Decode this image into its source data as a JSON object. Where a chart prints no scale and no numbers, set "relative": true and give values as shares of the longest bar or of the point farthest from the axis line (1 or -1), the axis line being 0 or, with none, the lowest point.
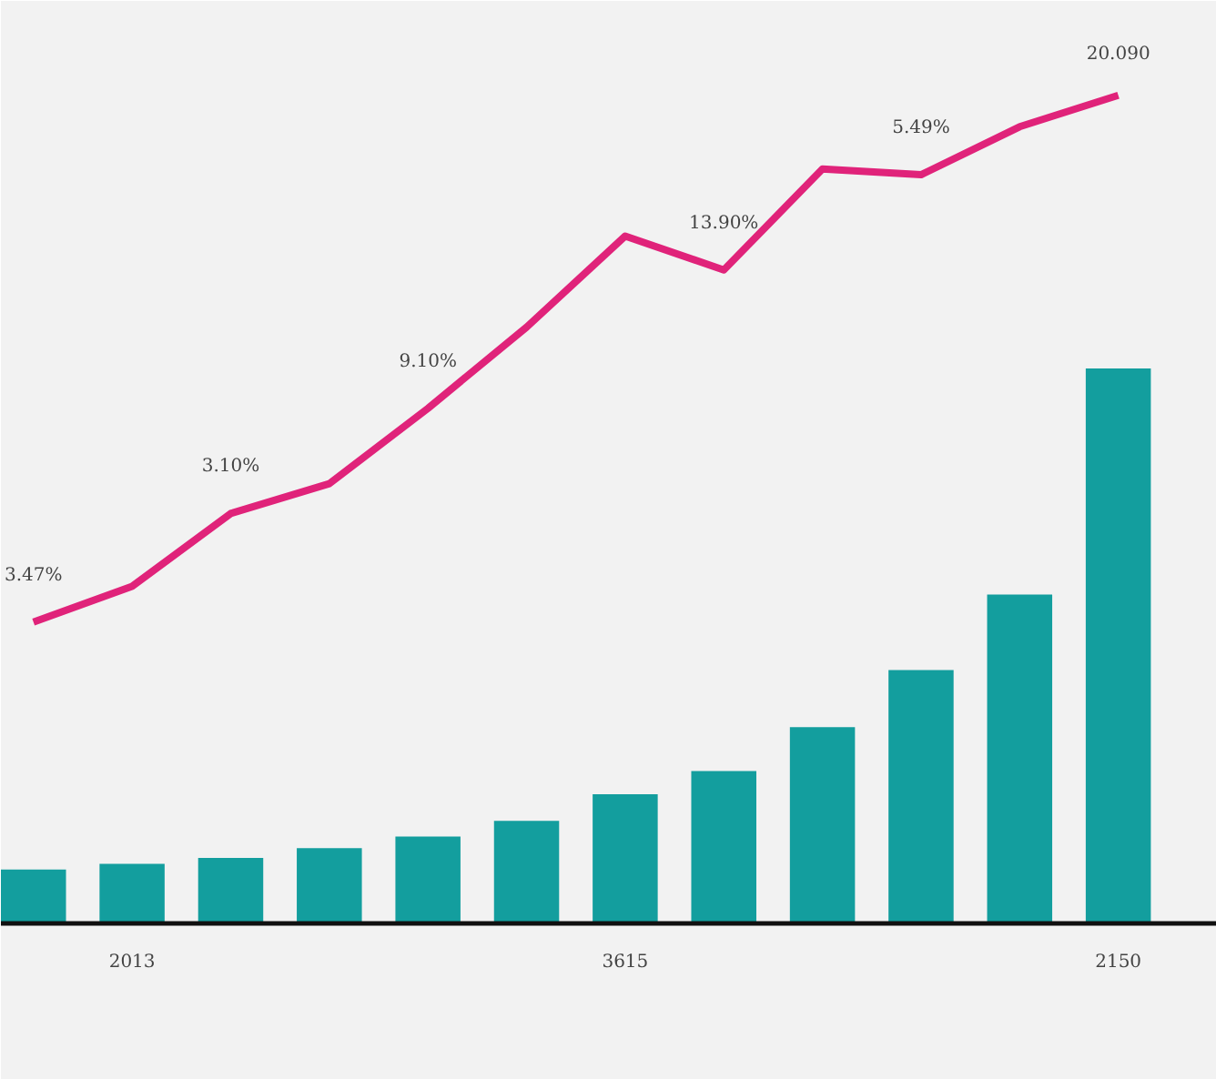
{
  "chart_data": {
    "type": "bar",
    "relative": true,
    "categories": [
      null,
      "2013",
      null,
      null,
      null,
      null,
      "3615",
      null,
      null,
      null,
      null,
      "2150"
    ],
    "series": [
      {
        "color": "#139e9e",
        "values": [
          0.065,
          0.072,
          0.079,
          0.091,
          0.105,
          0.124,
          0.156,
          0.184,
          0.237,
          0.306,
          0.397,
          0.67
        ]
      },
      {
        "type": "line",
        "color": "#e0237a",
        "values": [
          0.364,
          0.407,
          0.495,
          0.531,
          0.622,
          0.72,
          0.83,
          0.789,
          0.911,
          0.904,
          0.962,
          1.0
        ]
      }
    ],
    "annotations": [
      "3.47%",
      "3.10%",
      "9.10%",
      "13.90%",
      "5.49%",
      "20.090"
    ]
  }
}
